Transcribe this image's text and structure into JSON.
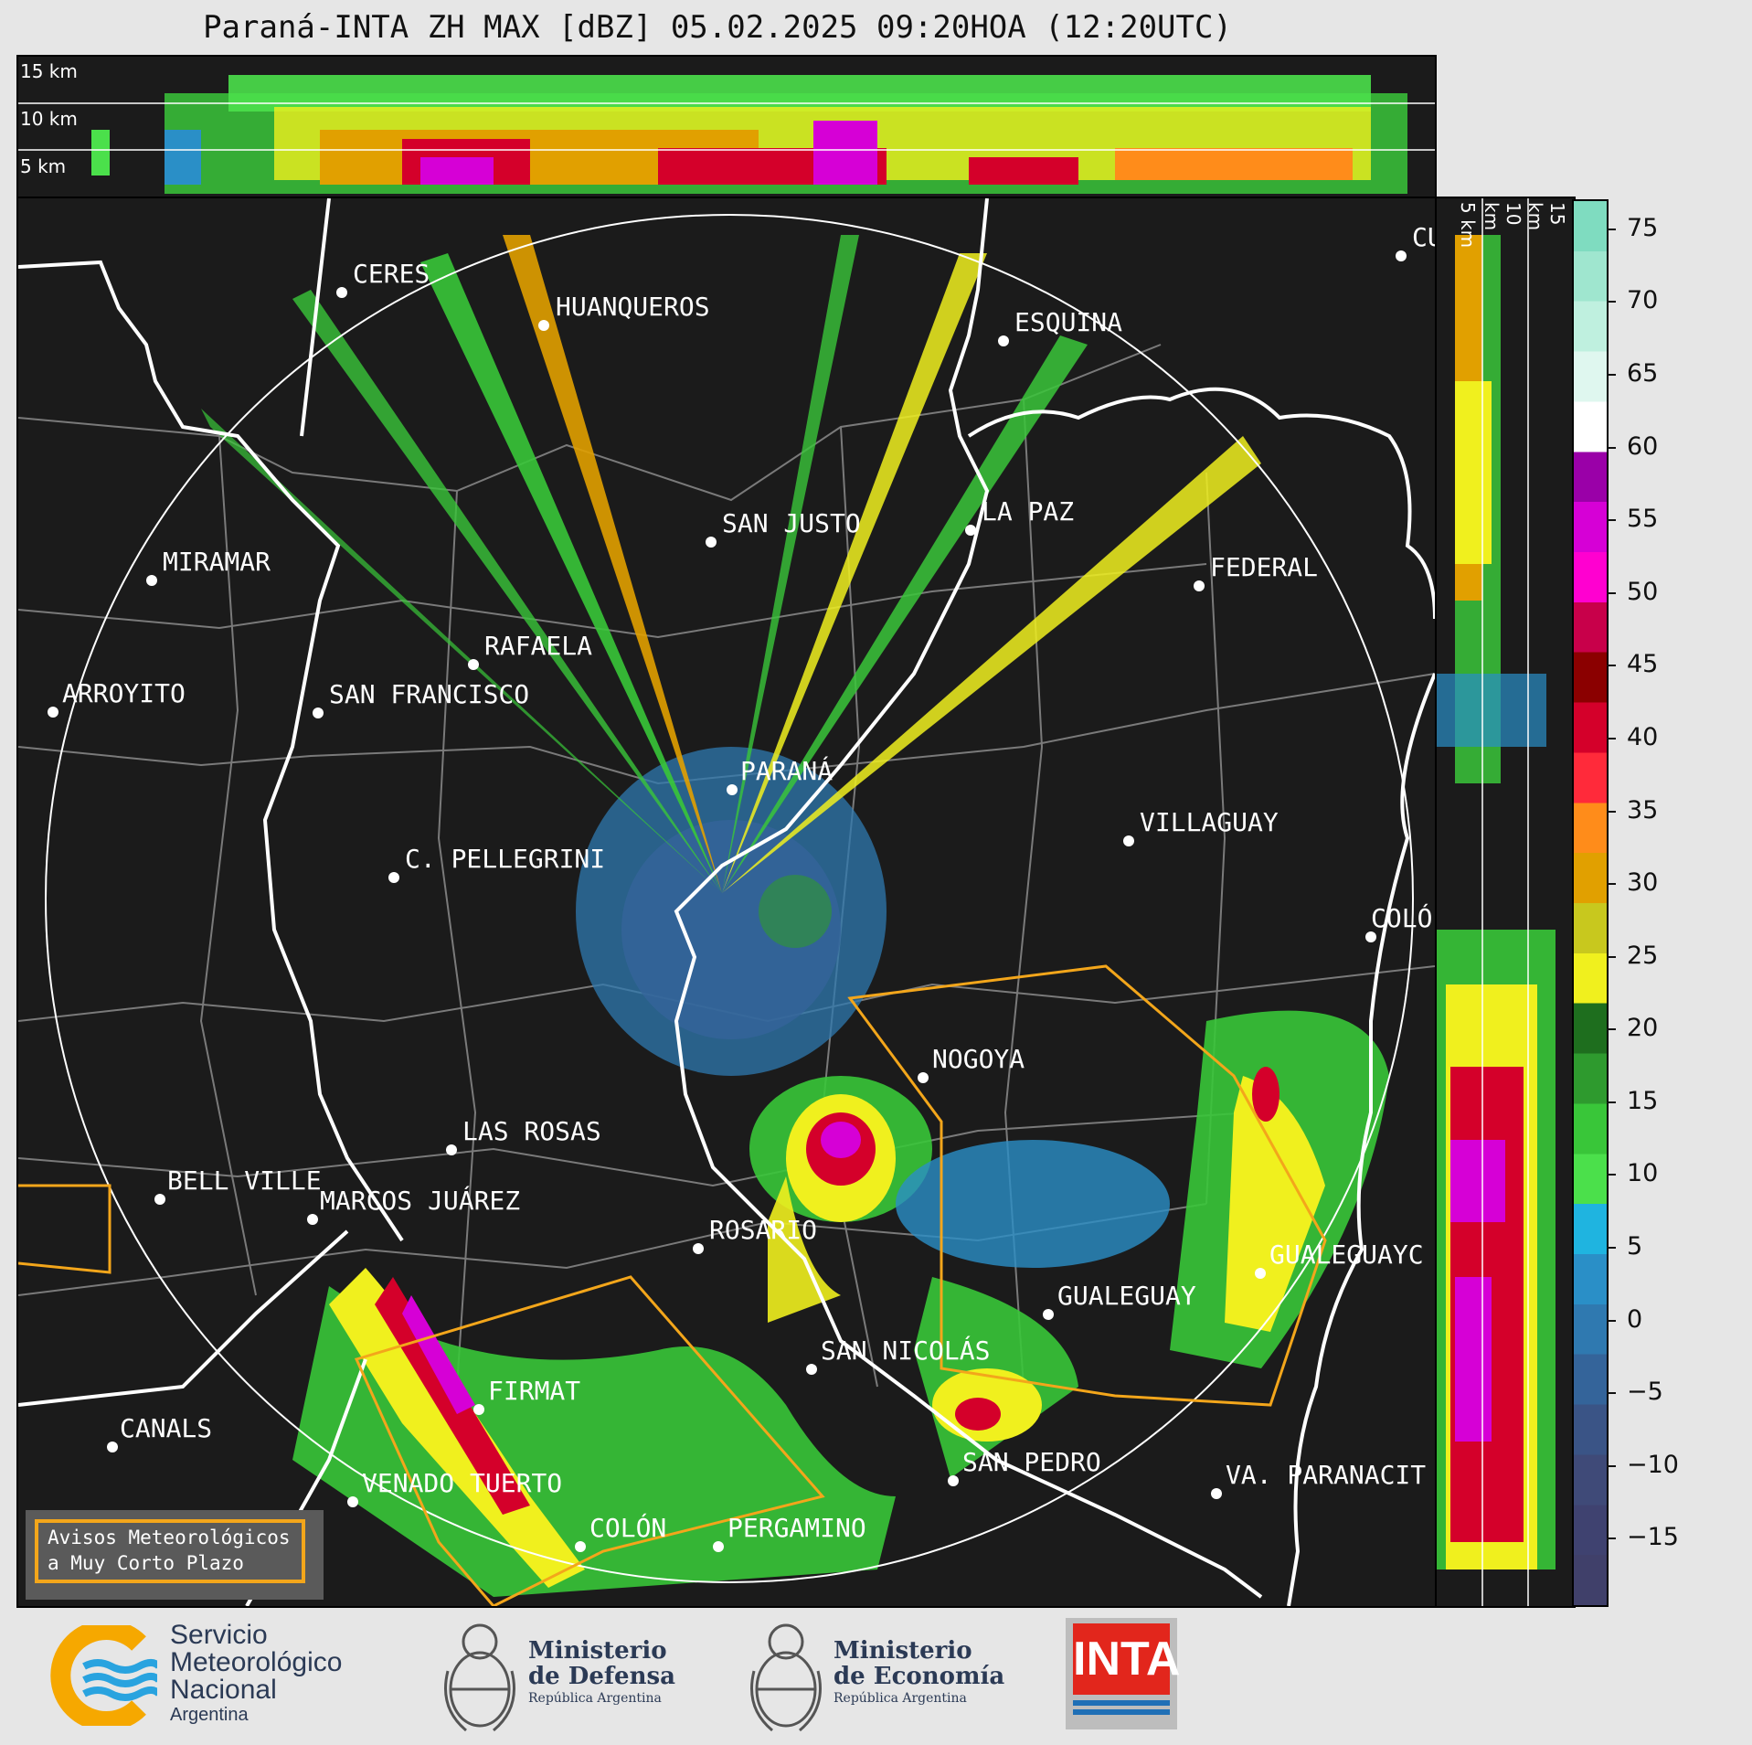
{
  "title": "Paraná-INTA ZH MAX [dBZ] 05.02.2025 09:20HOA (12:20UTC)",
  "top_panel": {
    "height_labels": [
      "15 km",
      "10 km",
      "5 km"
    ]
  },
  "side_panel": {
    "height_labels": [
      "5 km",
      "10 km",
      "15 km"
    ]
  },
  "colorbar": {
    "unit": "dBZ",
    "ticks": [
      "75",
      "70",
      "65",
      "60",
      "55",
      "50",
      "45",
      "40",
      "35",
      "30",
      "25",
      "20",
      "15",
      "10",
      "5",
      "0",
      "−5",
      "−10",
      "−15"
    ],
    "colors_top_to_bottom": [
      "#7fdcc0",
      "#9fe6cf",
      "#bff0df",
      "#dff7ef",
      "#ffffff",
      "#9a00a8",
      "#d600d6",
      "#ff00d0",
      "#c8004a",
      "#8b0000",
      "#d4002a",
      "#ff2a3a",
      "#ff8c1a",
      "#e1a000",
      "#c8c81e",
      "#f0f01e",
      "#1e6e1e",
      "#2e9a2e",
      "#39c639",
      "#4be04b",
      "#1fb4e0",
      "#2a8fc7",
      "#2f79b0",
      "#34649a",
      "#3a5486",
      "#3f4a78",
      "#3f4270",
      "#40406a"
    ]
  },
  "cities": [
    {
      "name": "CERES"
    },
    {
      "name": "HUANQUEROS"
    },
    {
      "name": "ESQUINA"
    },
    {
      "name": "CU"
    },
    {
      "name": "SAN JUSTO"
    },
    {
      "name": "LA PAZ"
    },
    {
      "name": "MIRAMAR"
    },
    {
      "name": "FEDERAL"
    },
    {
      "name": "RAFAELA"
    },
    {
      "name": "ARROYITO"
    },
    {
      "name": "SAN FRANCISCO"
    },
    {
      "name": "PARANÁ"
    },
    {
      "name": "VILLAGUAY"
    },
    {
      "name": "C. PELLEGRINI"
    },
    {
      "name": "COLÓ"
    },
    {
      "name": "NOGOYA"
    },
    {
      "name": "LAS ROSAS"
    },
    {
      "name": "BELL VILLE"
    },
    {
      "name": "MARCOS JUÁREZ"
    },
    {
      "name": "ROSARIO"
    },
    {
      "name": "GUALEGUAYC"
    },
    {
      "name": "GUALEGUAY"
    },
    {
      "name": "SAN NICOLÁS"
    },
    {
      "name": "FIRMAT"
    },
    {
      "name": "CANALS"
    },
    {
      "name": "SAN PEDRO"
    },
    {
      "name": "VENADO TUERTO"
    },
    {
      "name": "VA. PARANACIT"
    },
    {
      "name": "COLÓN"
    },
    {
      "name": "PERGAMINO"
    }
  ],
  "warning_box": {
    "line1": "Avisos Meteorológicos",
    "line2": "a Muy Corto Plazo"
  },
  "logos": {
    "smn": {
      "line1": "Servicio",
      "line2": "Meteorológico",
      "line3": "Nacional",
      "line4": "Argentina"
    },
    "defensa": {
      "line1": "Ministerio",
      "line2": "de Defensa",
      "line3": "República Argentina"
    },
    "economia": {
      "line1": "Ministerio",
      "line2": "de Economía",
      "line3": "República Argentina"
    },
    "inta": {
      "text": "INTA"
    }
  }
}
